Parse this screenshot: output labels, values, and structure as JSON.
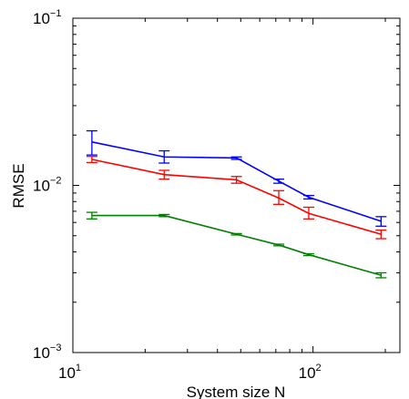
{
  "chart_data": {
    "type": "line",
    "title": "",
    "xlabel": "System size N",
    "ylabel": "RMSE",
    "xscale": "log",
    "yscale": "log",
    "xlim": [
      10,
      230
    ],
    "ylim": [
      0.001,
      0.1
    ],
    "x_tick_labels": [
      {
        "value": 10,
        "base": "10",
        "exp": "1"
      },
      {
        "value": 100,
        "base": "10",
        "exp": "2"
      }
    ],
    "y_tick_labels": [
      {
        "value": 0.001,
        "base": "10",
        "exp": "−3"
      },
      {
        "value": 0.01,
        "base": "10",
        "exp": "−2"
      },
      {
        "value": 0.1,
        "base": "10",
        "exp": "−1"
      }
    ],
    "grid": false,
    "legend": "none",
    "x": [
      12,
      24,
      48,
      72,
      96,
      192
    ],
    "series": [
      {
        "color": "#0000ff",
        "values": [
          0.0182,
          0.0148,
          0.0146,
          0.0106,
          0.0085,
          0.0061
        ],
        "err_low": [
          0.0152,
          0.0136,
          0.0143,
          0.0103,
          0.0083,
          0.0057
        ],
        "err_high": [
          0.0212,
          0.0161,
          0.0148,
          0.0109,
          0.0087,
          0.0065
        ]
      },
      {
        "color": "#ff0000",
        "values": [
          0.0143,
          0.0116,
          0.0108,
          0.0084,
          0.0068,
          0.0051
        ],
        "err_low": [
          0.0137,
          0.0109,
          0.0103,
          0.0077,
          0.0063,
          0.0048
        ],
        "err_high": [
          0.0149,
          0.0123,
          0.0113,
          0.0093,
          0.0074,
          0.0054
        ]
      },
      {
        "color": "#008000",
        "values": [
          0.0066,
          0.0066,
          0.0051,
          0.0044,
          0.00385,
          0.0029
        ],
        "err_low": [
          0.0063,
          0.0065,
          0.00505,
          0.00435,
          0.0038,
          0.0028
        ],
        "err_high": [
          0.0069,
          0.0067,
          0.00515,
          0.00445,
          0.0039,
          0.003
        ]
      }
    ]
  }
}
